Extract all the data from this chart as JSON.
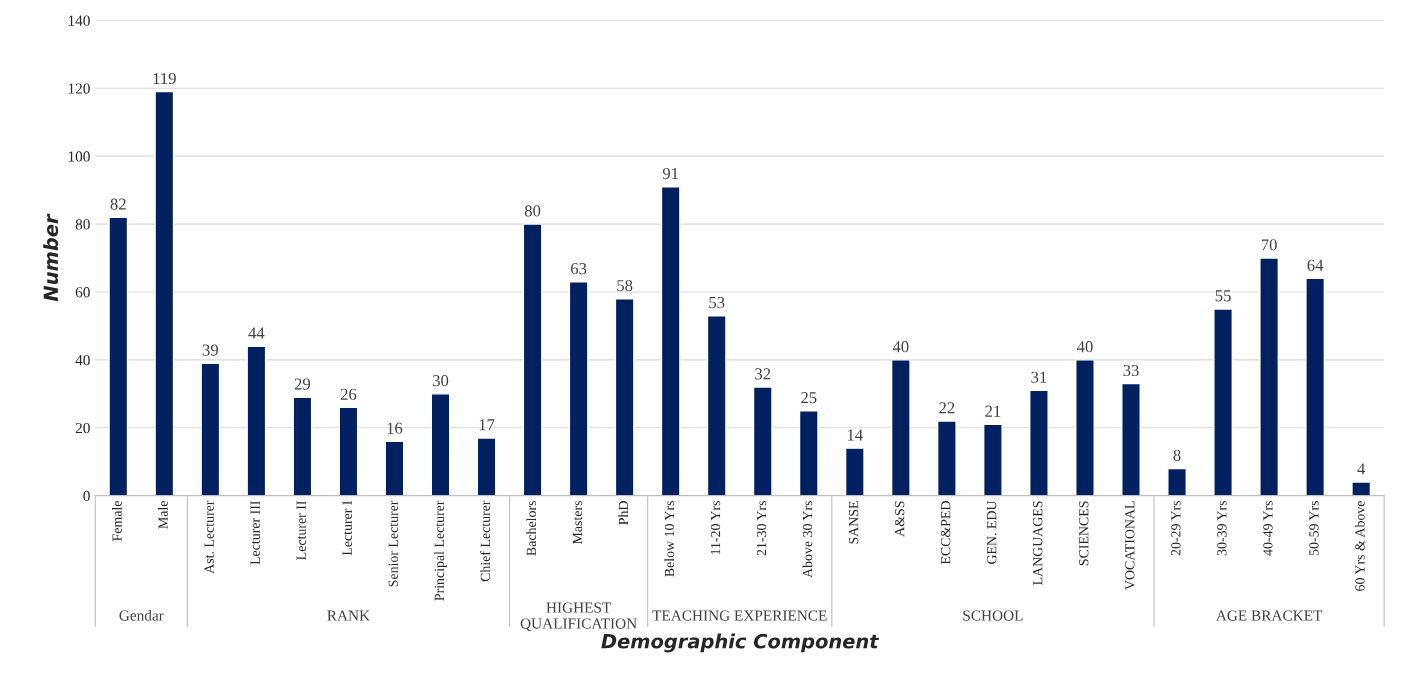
{
  "chart_data": {
    "type": "bar",
    "xlabel": "Demographic Component",
    "ylabel": "Number",
    "categories": [
      "Female",
      "Male",
      "Ast. Lecturer",
      "Lecturer III",
      "Lecturer II",
      "Lecturer I",
      "Senior Lecturer",
      "Principal Lecturer",
      "Chief Lecturer",
      "Bachelors",
      "Masters",
      "PhD",
      "Below 10 Yrs",
      "11-20 Yrs",
      "21-30 Yrs",
      "Above 30 Yrs",
      "SANSE",
      "A&SS",
      "ECC&PED",
      "GEN. EDU",
      "LANGUAGES",
      "SCIENCES",
      "VOCATIONAL",
      "20-29 Yrs",
      "30-39 Yrs",
      "40-49 Yrs",
      "50-59 Yrs",
      "60 Yrs & Above"
    ],
    "values": [
      82,
      119,
      39,
      44,
      29,
      26,
      16,
      30,
      17,
      80,
      63,
      58,
      91,
      53,
      32,
      25,
      14,
      40,
      22,
      21,
      31,
      40,
      33,
      8,
      55,
      70,
      64,
      4
    ],
    "color": "#002060",
    "ylim": [
      0,
      140
    ],
    "yticks": [
      0,
      20,
      40,
      60,
      80,
      100,
      120,
      140
    ],
    "grid": "y",
    "data_labels": true,
    "annotations": [
      "Gendar",
      "RANK",
      "HIGHEST QUALIFICATION",
      "TEACHING EXPERIENCE",
      "SCHOOL",
      "AGE BRACKET"
    ]
  }
}
